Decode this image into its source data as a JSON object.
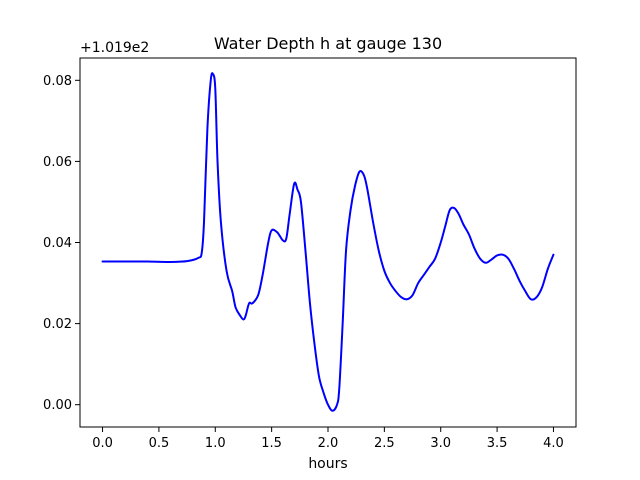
{
  "chart_data": {
    "type": "line",
    "title": "Water Depth h at gauge 130",
    "xlabel": "hours",
    "ylabel": "",
    "offset_label": "+1.019e2",
    "x_ticks": [
      0.0,
      0.5,
      1.0,
      1.5,
      2.0,
      2.5,
      3.0,
      3.5,
      4.0
    ],
    "x_tick_labels": [
      "0.0",
      "0.5",
      "1.0",
      "1.5",
      "2.0",
      "2.5",
      "3.0",
      "3.5",
      "4.0"
    ],
    "y_ticks": [
      0.0,
      0.02,
      0.04,
      0.06,
      0.08
    ],
    "y_tick_labels": [
      "0.00",
      "0.02",
      "0.04",
      "0.06",
      "0.08"
    ],
    "xlim": [
      -0.2,
      4.2
    ],
    "ylim": [
      -0.0055,
      0.0855
    ],
    "grid": false,
    "series": [
      {
        "color": "#0000ff",
        "x": [
          0.0,
          0.2,
          0.4,
          0.6,
          0.75,
          0.85,
          0.88,
          0.9,
          0.93,
          0.96,
          0.98,
          1.0,
          1.02,
          1.05,
          1.1,
          1.15,
          1.18,
          1.22,
          1.25,
          1.27,
          1.3,
          1.33,
          1.38,
          1.42,
          1.47,
          1.5,
          1.55,
          1.6,
          1.63,
          1.66,
          1.7,
          1.73,
          1.76,
          1.8,
          1.84,
          1.88,
          1.92,
          1.96,
          2.0,
          2.04,
          2.08,
          2.1,
          2.13,
          2.16,
          2.2,
          2.24,
          2.28,
          2.32,
          2.35,
          2.4,
          2.45,
          2.5,
          2.55,
          2.6,
          2.65,
          2.7,
          2.75,
          2.8,
          2.85,
          2.9,
          2.95,
          3.0,
          3.04,
          3.08,
          3.12,
          3.16,
          3.2,
          3.25,
          3.3,
          3.35,
          3.4,
          3.45,
          3.5,
          3.55,
          3.6,
          3.65,
          3.7,
          3.75,
          3.8,
          3.85,
          3.9,
          3.95,
          4.0
        ],
        "y": [
          0.0353,
          0.0353,
          0.0353,
          0.0352,
          0.0354,
          0.0362,
          0.0375,
          0.045,
          0.068,
          0.08,
          0.0815,
          0.078,
          0.06,
          0.045,
          0.033,
          0.028,
          0.024,
          0.022,
          0.021,
          0.022,
          0.025,
          0.025,
          0.027,
          0.032,
          0.04,
          0.043,
          0.0425,
          0.0405,
          0.041,
          0.047,
          0.0545,
          0.053,
          0.05,
          0.038,
          0.025,
          0.015,
          0.007,
          0.003,
          0.0,
          -0.0015,
          0.0,
          0.004,
          0.02,
          0.038,
          0.048,
          0.054,
          0.0575,
          0.0565,
          0.053,
          0.045,
          0.038,
          0.033,
          0.03,
          0.028,
          0.0265,
          0.026,
          0.027,
          0.03,
          0.032,
          0.034,
          0.036,
          0.04,
          0.044,
          0.048,
          0.0485,
          0.047,
          0.0445,
          0.042,
          0.0385,
          0.036,
          0.035,
          0.0358,
          0.0368,
          0.037,
          0.036,
          0.0335,
          0.0305,
          0.028,
          0.026,
          0.0265,
          0.029,
          0.0335,
          0.037
        ]
      }
    ]
  }
}
